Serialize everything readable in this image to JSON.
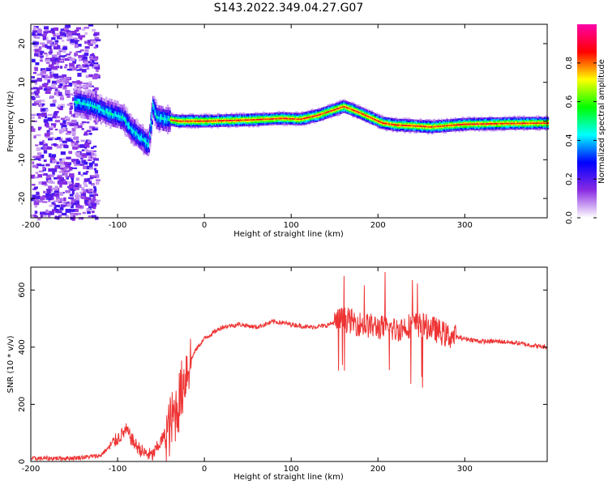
{
  "title": "S143.2022.349.04.27.G07",
  "colors": {
    "snr_line": "#ee3333",
    "colormap": [
      "#ffffff",
      "#8a2be2",
      "#0000ff",
      "#00ffff",
      "#00ff00",
      "#ffff00",
      "#ff0000",
      "#ff00aa"
    ]
  },
  "chart_data": [
    {
      "type": "heatmap",
      "title": "",
      "xlabel": "Height of straight line (km)",
      "ylabel": "Frequency (Hz)",
      "xlim": [
        -200,
        395
      ],
      "ylim": [
        -25,
        25
      ],
      "xticks": [
        -200,
        -100,
        0,
        100,
        200,
        300
      ],
      "yticks": [
        -20,
        -10,
        0,
        10,
        20
      ],
      "colorbar": {
        "label": "Normalized spectral amplitude",
        "range": [
          0,
          1
        ],
        "ticks": [
          "0.0",
          "0.2",
          "0.4",
          "0.6",
          "0.8"
        ]
      },
      "ridge": {
        "x": [
          -150,
          -130,
          -110,
          -95,
          -85,
          -75,
          -65,
          -60,
          -55,
          -45,
          -30,
          0,
          50,
          90,
          110,
          130,
          150,
          160,
          175,
          190,
          205,
          220,
          240,
          260,
          300,
          350,
          395
        ],
        "y": [
          5,
          4,
          2,
          1,
          -2,
          -4,
          -6,
          4,
          1,
          0.5,
          0,
          0,
          0.3,
          0.7,
          0.5,
          1.5,
          3,
          3.8,
          2.5,
          1,
          -0.5,
          -1,
          -1.2,
          -1.5,
          -0.8,
          -0.6,
          -0.5
        ]
      }
    },
    {
      "type": "line",
      "title": "",
      "xlabel": "Height of straight line (km)",
      "ylabel": "SNR (10 * v/v)",
      "xlim": [
        -200,
        395
      ],
      "ylim": [
        0,
        680
      ],
      "xticks": [
        -200,
        -100,
        0,
        100,
        200,
        300
      ],
      "yticks": [
        0,
        200,
        400,
        600
      ],
      "series": [
        {
          "x": [
            -200,
            -150,
            -120,
            -100,
            -90,
            -80,
            -70,
            -60,
            -50,
            -40,
            -30,
            -20,
            -10,
            0,
            20,
            40,
            60,
            80,
            100,
            120,
            140,
            160,
            180,
            200,
            220,
            240,
            260,
            280,
            300,
            320,
            340,
            360,
            380,
            395
          ],
          "y": [
            10,
            12,
            20,
            80,
            110,
            60,
            30,
            20,
            70,
            120,
            200,
            330,
            390,
            430,
            470,
            480,
            470,
            490,
            480,
            470,
            475,
            500,
            480,
            470,
            460,
            480,
            470,
            440,
            430,
            420,
            420,
            415,
            405,
            400
          ]
        }
      ]
    }
  ]
}
